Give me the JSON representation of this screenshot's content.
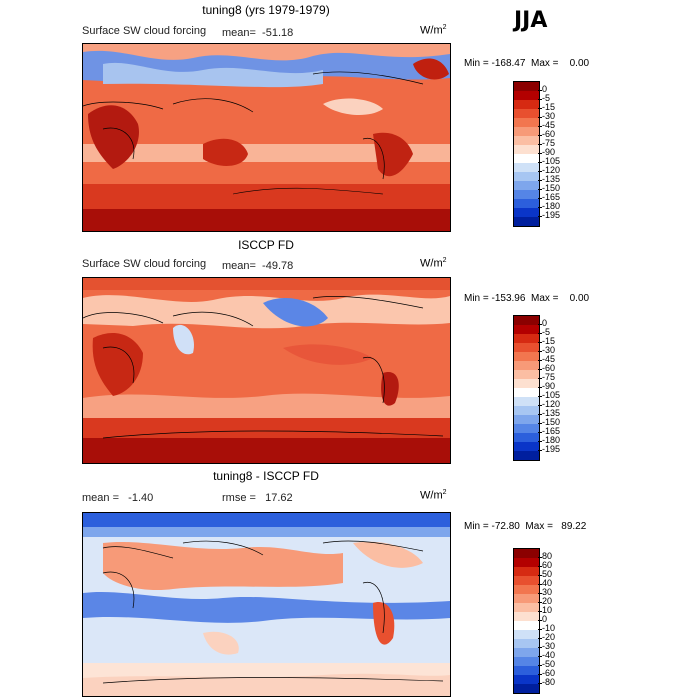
{
  "season": "JJA",
  "panels": [
    {
      "title": "tuning8 (yrs 1979-1979)",
      "field": "Surface SW cloud forcing",
      "mean": "mean=  -51.18",
      "units": "W/m",
      "units_sup": "2",
      "minmax": "Min = -168.47  Max =    0.00",
      "colorbar": {
        "labels": [
          "0",
          "-5",
          "-15",
          "-30",
          "-45",
          "-60",
          "-75",
          "-90",
          "-105",
          "-120",
          "-135",
          "-150",
          "-165",
          "-180",
          "-195"
        ],
        "colors": [
          "#8b0000",
          "#b30000",
          "#d62a12",
          "#e8502f",
          "#f2764f",
          "#f79a78",
          "#fbbea3",
          "#fde0d0",
          "#ffffff",
          "#cfe1f7",
          "#a7c6f2",
          "#7ea6ec",
          "#5585e6",
          "#2c5fdc",
          "#0a35c8",
          "#001f9e"
        ]
      }
    },
    {
      "title": "ISCCP FD",
      "field": "Surface SW cloud forcing",
      "mean": "mean=  -49.78",
      "units": "W/m",
      "units_sup": "2",
      "minmax": "Min = -153.96  Max =    0.00",
      "colorbar": {
        "labels": [
          "0",
          "-5",
          "-15",
          "-30",
          "-45",
          "-60",
          "-75",
          "-90",
          "-105",
          "-120",
          "-135",
          "-150",
          "-165",
          "-180",
          "-195"
        ],
        "colors": [
          "#8b0000",
          "#b30000",
          "#d62a12",
          "#e8502f",
          "#f2764f",
          "#f79a78",
          "#fbbea3",
          "#fde0d0",
          "#ffffff",
          "#cfe1f7",
          "#a7c6f2",
          "#7ea6ec",
          "#5585e6",
          "#2c5fdc",
          "#0a35c8",
          "#001f9e"
        ]
      }
    },
    {
      "title": "tuning8 - ISCCP FD",
      "mean": "mean =   -1.40",
      "rmse": "rmse =   17.62",
      "units": "W/m",
      "units_sup": "2",
      "minmax": "Min = -72.80  Max =   89.22",
      "colorbar": {
        "labels": [
          "80",
          "60",
          "50",
          "40",
          "30",
          "20",
          "10",
          "0",
          "-10",
          "-20",
          "-30",
          "-40",
          "-50",
          "-60",
          "-80"
        ],
        "colors": [
          "#8b0000",
          "#b30000",
          "#d62a12",
          "#e8502f",
          "#f2764f",
          "#f79a78",
          "#fbbea3",
          "#fde0d0",
          "#ffffff",
          "#cfe1f7",
          "#a7c6f2",
          "#7ea6ec",
          "#5585e6",
          "#2c5fdc",
          "#0a35c8",
          "#001f9e"
        ]
      }
    }
  ]
}
